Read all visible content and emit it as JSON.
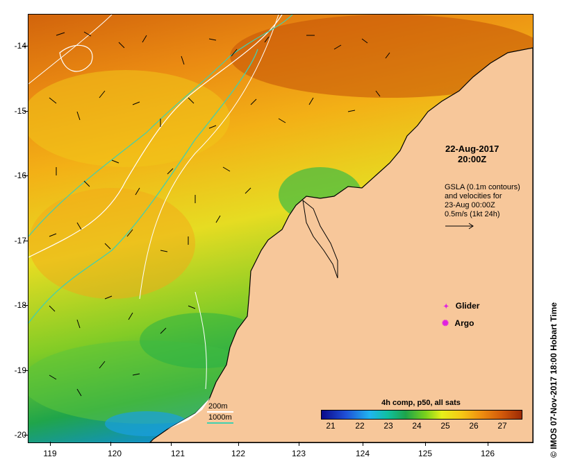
{
  "timestamp": {
    "date": "22-Aug-2017",
    "time": "20:00Z"
  },
  "gsla_note": {
    "line1": "GSLA (0.1m contours)",
    "line2": "and velocities for",
    "line3": "23-Aug 00:00Z",
    "line4": "0.5m/s (1kt 24h)"
  },
  "legend": {
    "glider": "Glider",
    "argo": "Argo",
    "glider_color": "#e020e0",
    "argo_color": "#e020e0"
  },
  "colorbar": {
    "title": "4h comp, p50, all sats",
    "labels": [
      "21",
      "22",
      "23",
      "24",
      "25",
      "26",
      "27"
    ]
  },
  "depth_scale": {
    "line200": "200m",
    "line1000": "1000m",
    "color200": "#ffffff",
    "color1000": "#40d0b0"
  },
  "axes": {
    "lat_labels": [
      "-14",
      "-15",
      "-16",
      "-17",
      "-18",
      "-19",
      "-20"
    ],
    "lon_labels": [
      "119",
      "120",
      "121",
      "122",
      "123",
      "124",
      "125",
      "126"
    ]
  },
  "credit": "© IMOS 07-Nov-2017 18:00 Hobart Time",
  "colors": {
    "land": "#f7c79a",
    "coast": "#000000"
  }
}
